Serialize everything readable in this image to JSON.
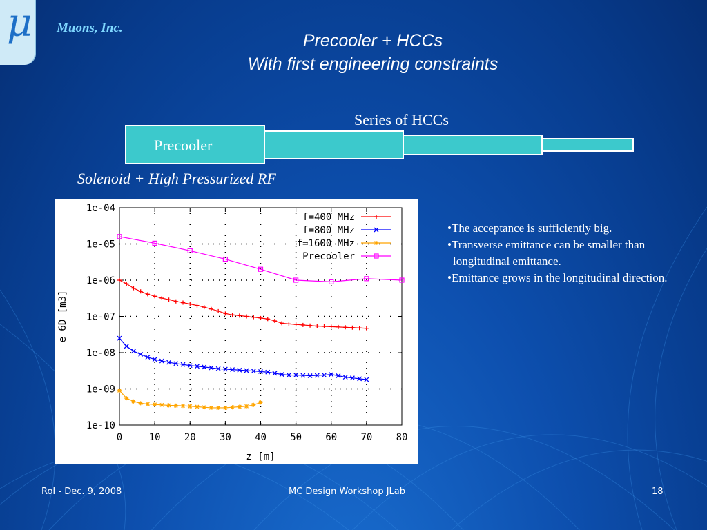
{
  "company": "Muons, Inc.",
  "logo_symbol": "μ",
  "title_line1": "Precooler + HCCs",
  "title_line2": "With first engineering constraints",
  "diagram": {
    "series_label": "Series of HCCs",
    "precooler_label": "Precooler",
    "solenoid_label": "Solenoid + High Pressurized RF"
  },
  "bullets": [
    "•The acceptance is sufficiently big.",
    "•Transverse emittance can be smaller than longitudinal emittance.",
    "•Emittance grows in the longitudinal direction."
  ],
  "footer": {
    "left": "RoI - Dec. 9, 2008",
    "center": "MC Design Workshop JLab",
    "page": "18"
  },
  "chart_data": {
    "type": "line",
    "xlabel": "z [m]",
    "ylabel": "e_6D [m3]",
    "xlim": [
      0,
      80
    ],
    "ylim": [
      1e-10,
      0.0001
    ],
    "yscale": "log",
    "grid": true,
    "legend_position": "top-right",
    "x_ticks": [
      "0",
      "10",
      "20",
      "30",
      "40",
      "50",
      "60",
      "70",
      "80"
    ],
    "y_ticks": [
      "1e-10",
      "1e-09",
      "1e-08",
      "1e-07",
      "1e-06",
      "1e-05",
      "1e-04"
    ],
    "series": [
      {
        "name": "f=400 MHz",
        "color": "#ff0000",
        "marker": "plus",
        "x": [
          0,
          2,
          4,
          6,
          8,
          10,
          12,
          14,
          16,
          18,
          20,
          22,
          24,
          26,
          28,
          30,
          32,
          34,
          36,
          38,
          40,
          42,
          44,
          46,
          48,
          50,
          52,
          54,
          56,
          58,
          60,
          62,
          64,
          66,
          68,
          70
        ],
        "y": [
          1e-06,
          8e-07,
          6e-07,
          4.9e-07,
          4.1e-07,
          3.6e-07,
          3.2e-07,
          2.9e-07,
          2.6e-07,
          2.4e-07,
          2.2e-07,
          2e-07,
          1.8e-07,
          1.6e-07,
          1.4e-07,
          1.2e-07,
          1.1e-07,
          1.05e-07,
          1e-07,
          9.5e-08,
          9e-08,
          8.5e-08,
          7.5e-08,
          6.5e-08,
          6.2e-08,
          6e-08,
          5.8e-08,
          5.6e-08,
          5.4e-08,
          5.3e-08,
          5.2e-08,
          5.1e-08,
          5e-08,
          4.9e-08,
          4.8e-08,
          4.7e-08
        ]
      },
      {
        "name": "f=800 MHz",
        "color": "#0000ff",
        "marker": "x",
        "x": [
          0,
          2,
          4,
          6,
          8,
          10,
          12,
          14,
          16,
          18,
          20,
          22,
          24,
          26,
          28,
          30,
          32,
          34,
          36,
          38,
          40,
          42,
          44,
          46,
          48,
          50,
          52,
          54,
          56,
          58,
          60,
          62,
          64,
          66,
          68,
          70
        ],
        "y": [
          2.5e-08,
          1.5e-08,
          1.1e-08,
          9e-09,
          7.5e-09,
          6.5e-09,
          5.9e-09,
          5.4e-09,
          5e-09,
          4.7e-09,
          4.4e-09,
          4.2e-09,
          4e-09,
          3.8e-09,
          3.6e-09,
          3.5e-09,
          3.4e-09,
          3.3e-09,
          3.2e-09,
          3.1e-09,
          3e-09,
          2.9e-09,
          2.7e-09,
          2.5e-09,
          2.4e-09,
          2.4e-09,
          2.35e-09,
          2.3e-09,
          2.35e-09,
          2.4e-09,
          2.5e-09,
          2.3e-09,
          2.1e-09,
          2e-09,
          1.9e-09,
          1.8e-09
        ]
      },
      {
        "name": "f=1600 MHz",
        "color": "#ffa500",
        "marker": "star",
        "x": [
          0,
          2,
          4,
          6,
          8,
          10,
          12,
          14,
          16,
          18,
          20,
          22,
          24,
          26,
          28,
          30,
          32,
          34,
          36,
          38,
          40
        ],
        "y": [
          9e-10,
          5.5e-10,
          4.5e-10,
          4e-10,
          3.8e-10,
          3.7e-10,
          3.6e-10,
          3.5e-10,
          3.45e-10,
          3.4e-10,
          3.3e-10,
          3.2e-10,
          3.1e-10,
          3e-10,
          3e-10,
          3e-10,
          3.1e-10,
          3.2e-10,
          3.3e-10,
          3.6e-10,
          4.2e-10
        ]
      },
      {
        "name": "Precooler",
        "color": "#ff00ff",
        "marker": "square",
        "x": [
          0,
          10,
          20,
          30,
          40,
          50,
          60,
          70,
          80
        ],
        "y": [
          1.6e-05,
          1.05e-05,
          6.5e-06,
          3.8e-06,
          2e-06,
          1e-06,
          9e-07,
          1.1e-06,
          1e-06
        ]
      }
    ]
  }
}
